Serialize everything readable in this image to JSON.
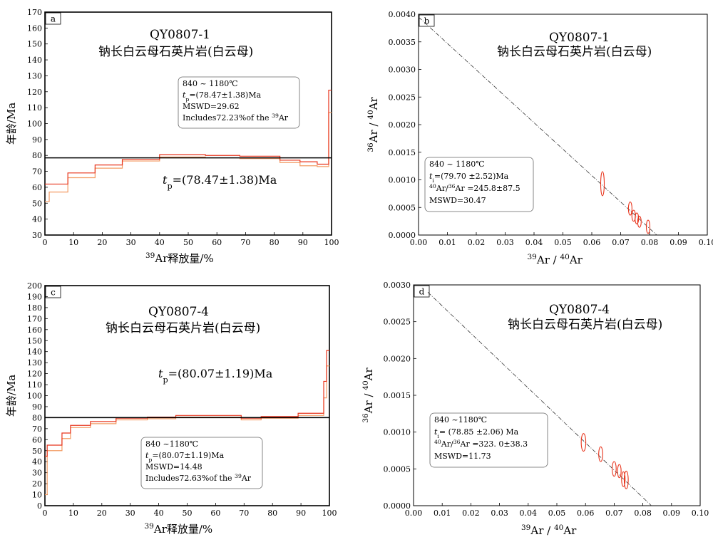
{
  "chart_data": [
    {
      "id": "a",
      "type": "step",
      "panel_label": "a",
      "title": "QY0807-1",
      "subtitle": "钠长白云母石英片岩(白云母)",
      "xlabel": "Ar释放量/%",
      "xlabel_sup": "39",
      "ylabel": "年龄/Ma",
      "xlim": [
        0,
        100
      ],
      "ylim": [
        30,
        170
      ],
      "xticks": [
        0,
        10,
        20,
        30,
        40,
        50,
        60,
        70,
        80,
        90,
        100
      ],
      "yticks": [
        30,
        40,
        50,
        60,
        70,
        80,
        90,
        100,
        110,
        120,
        130,
        140,
        150,
        160,
        170
      ],
      "plateau_age": 78.47,
      "plateau_label_pre": "t",
      "plateau_label_sub": "p",
      "plateau_label_post": "=(78.47±1.38)Ma",
      "steps": [
        {
          "x0": 0,
          "x1": 1.5,
          "lo": 51,
          "hi": 62
        },
        {
          "x0": 1.5,
          "x1": 8,
          "lo": 57,
          "hi": 62
        },
        {
          "x0": 8,
          "x1": 17.5,
          "lo": 66,
          "hi": 69
        },
        {
          "x0": 17.5,
          "x1": 27,
          "lo": 72,
          "hi": 74
        },
        {
          "x0": 27,
          "x1": 40,
          "lo": 76.5,
          "hi": 77.5
        },
        {
          "x0": 40,
          "x1": 56,
          "lo": 79,
          "hi": 80.5
        },
        {
          "x0": 56,
          "x1": 68,
          "lo": 78.5,
          "hi": 80
        },
        {
          "x0": 68,
          "x1": 82,
          "lo": 78,
          "hi": 79.5
        },
        {
          "x0": 82,
          "x1": 89,
          "lo": 75.5,
          "hi": 77
        },
        {
          "x0": 89,
          "x1": 95,
          "lo": 73.5,
          "hi": 76
        },
        {
          "x0": 95,
          "x1": 99,
          "lo": 73,
          "hi": 74.5
        },
        {
          "x0": 99,
          "x1": 100,
          "lo": 107,
          "hi": 121
        }
      ],
      "legend_box": {
        "lines": [
          {
            "pre": "840 ~ 1180℃"
          },
          {
            "pre": "t",
            "sub": "p",
            "post": "=(78.47±1.38)Ma"
          },
          {
            "pre": "MSWD=29.62"
          },
          {
            "pre": "Includes72.23%of the ",
            "sup": "39",
            "post": "Ar"
          }
        ]
      }
    },
    {
      "id": "b",
      "type": "scatter",
      "panel_label": "b",
      "title": "QY0807-1",
      "subtitle": "钠长白云母石英片岩(白云母)",
      "xlabel": "Ar / Ar",
      "xlabel_parts": [
        {
          "sup": "39"
        },
        {
          "t": "Ar / "
        },
        {
          "sup": "40"
        },
        {
          "t": "Ar"
        }
      ],
      "ylabel_parts": [
        {
          "sup": "36"
        },
        {
          "t": "Ar / "
        },
        {
          "sup": "40"
        },
        {
          "t": "Ar"
        }
      ],
      "xlim": [
        0,
        0.1
      ],
      "ylim": [
        0,
        0.004
      ],
      "xticks": [
        "0.00",
        "0.01",
        "0.02",
        "0.03",
        "0.04",
        "0.05",
        "0.06",
        "0.07",
        "0.08",
        "0.09",
        "0.10"
      ],
      "yticks": [
        "0.0000",
        "0.0005",
        "0.0010",
        "0.0015",
        "0.0020",
        "0.0025",
        "0.0030",
        "0.0035",
        "0.0040"
      ],
      "line": {
        "x": [
          0,
          0.0825
        ],
        "y": [
          0.00395,
          0
        ]
      },
      "points": [
        {
          "x": 0.0637,
          "y": 0.00093,
          "rx": 0.0006,
          "ry": 0.00022
        },
        {
          "x": 0.0733,
          "y": 0.00048,
          "rx": 0.0005,
          "ry": 0.00012
        },
        {
          "x": 0.0745,
          "y": 0.00035,
          "rx": 0.0004,
          "ry": 0.0001
        },
        {
          "x": 0.0756,
          "y": 0.0003,
          "rx": 0.0004,
          "ry": 0.0001
        },
        {
          "x": 0.0765,
          "y": 0.00024,
          "rx": 0.0004,
          "ry": 0.0001
        },
        {
          "x": 0.0795,
          "y": 0.00015,
          "rx": 0.0005,
          "ry": 0.00012
        }
      ],
      "legend_box": {
        "lines": [
          {
            "pre": "840 ~ 1180℃"
          },
          {
            "pre": "t",
            "sub": "i",
            "post": "=(79.70 ±2.52)Ma"
          },
          {
            "sup0": "40",
            "pre": "Ar/",
            "sup": "36",
            "post": "Ar =245.8±87.5"
          },
          {
            "pre": "MSWD=30.47"
          }
        ]
      }
    },
    {
      "id": "c",
      "type": "step",
      "panel_label": "c",
      "title": "QY0807-4",
      "subtitle": "钠长白云母石英片岩(白云母)",
      "xlabel": "Ar释放量/%",
      "xlabel_sup": "39",
      "ylabel": "年龄/Ma",
      "xlim": [
        0,
        100
      ],
      "ylim": [
        0,
        200
      ],
      "xticks": [
        0,
        10,
        20,
        30,
        40,
        50,
        60,
        70,
        80,
        90,
        100
      ],
      "yticks": [
        0,
        10,
        20,
        30,
        40,
        50,
        60,
        70,
        80,
        90,
        100,
        110,
        120,
        130,
        140,
        150,
        160,
        170,
        180,
        190,
        200
      ],
      "plateau_age": 80.07,
      "plateau_label_pre": "t",
      "plateau_label_sub": "p",
      "plateau_label_post": "=(80.07±1.19)Ma",
      "steps": [
        {
          "x0": 0,
          "x1": 0.8,
          "lo": 10,
          "hi": 45
        },
        {
          "x0": 0.8,
          "x1": 6,
          "lo": 50,
          "hi": 55
        },
        {
          "x0": 6,
          "x1": 9,
          "lo": 61,
          "hi": 66
        },
        {
          "x0": 9,
          "x1": 16,
          "lo": 71,
          "hi": 73
        },
        {
          "x0": 16,
          "x1": 25,
          "lo": 74.5,
          "hi": 76.5
        },
        {
          "x0": 25,
          "x1": 36,
          "lo": 78,
          "hi": 79.5
        },
        {
          "x0": 36,
          "x1": 46,
          "lo": 79,
          "hi": 80.5
        },
        {
          "x0": 46,
          "x1": 69,
          "lo": 80.5,
          "hi": 82
        },
        {
          "x0": 69,
          "x1": 76,
          "lo": 78,
          "hi": 79.5
        },
        {
          "x0": 76,
          "x1": 89,
          "lo": 79.5,
          "hi": 81
        },
        {
          "x0": 89,
          "x1": 98,
          "lo": 82,
          "hi": 84
        },
        {
          "x0": 98,
          "x1": 99,
          "lo": 98,
          "hi": 113
        },
        {
          "x0": 99,
          "x1": 100,
          "lo": 127,
          "hi": 141
        }
      ],
      "legend_box": {
        "lines": [
          {
            "pre": "840  ~1180℃"
          },
          {
            "pre": "t",
            "sub": "p",
            "post": "=(80.07±1.19)Ma"
          },
          {
            "pre": "MSWD=14.48"
          },
          {
            "pre": "Includes72.63%of the ",
            "sup": "39",
            "post": "Ar"
          }
        ]
      }
    },
    {
      "id": "d",
      "type": "scatter",
      "panel_label": "d",
      "title": "QY0807-4",
      "subtitle": "钠长白云母石英片岩(白云母)",
      "xlabel": "Ar / Ar",
      "xlabel_parts": [
        {
          "sup": "39"
        },
        {
          "t": "Ar / "
        },
        {
          "sup": "40"
        },
        {
          "t": "Ar"
        }
      ],
      "ylabel_parts": [
        {
          "sup": "36"
        },
        {
          "t": "Ar / "
        },
        {
          "sup": "40"
        },
        {
          "t": "Ar"
        }
      ],
      "xlim": [
        0,
        0.1
      ],
      "ylim": [
        0,
        0.003
      ],
      "xticks": [
        "0.00",
        "0.01",
        "0.02",
        "0.03",
        "0.04",
        "0.05",
        "0.06",
        "0.07",
        "0.08",
        "0.09",
        "0.10"
      ],
      "yticks": [
        "0.0000",
        "0.0005",
        "0.0010",
        "0.0015",
        "0.0020",
        "0.0025",
        "0.0030"
      ],
      "line": {
        "x": [
          0.005,
          0.083
        ],
        "y": [
          0.0029,
          0
        ]
      },
      "points": [
        {
          "x": 0.0593,
          "y": 0.00086,
          "rx": 0.0008,
          "ry": 0.00012
        },
        {
          "x": 0.0653,
          "y": 0.0007,
          "rx": 0.0007,
          "ry": 0.0001
        },
        {
          "x": 0.07,
          "y": 0.0005,
          "rx": 0.0007,
          "ry": 0.0001
        },
        {
          "x": 0.0718,
          "y": 0.00047,
          "rx": 0.0006,
          "ry": 9e-05
        },
        {
          "x": 0.0732,
          "y": 0.00036,
          "rx": 0.0006,
          "ry": 0.0001
        },
        {
          "x": 0.0742,
          "y": 0.00035,
          "rx": 0.0007,
          "ry": 0.00012
        }
      ],
      "legend_box": {
        "lines": [
          {
            "pre": "840  ~1180℃"
          },
          {
            "pre": "t",
            "sub": "i",
            "post": "= (78.85 ±2.06) Ma"
          },
          {
            "sup0": "40",
            "pre": "Ar/",
            "sup": "36",
            "post": "Ar =323. 0±38.3"
          },
          {
            "pre": "MSWD=11.73"
          }
        ]
      }
    }
  ]
}
